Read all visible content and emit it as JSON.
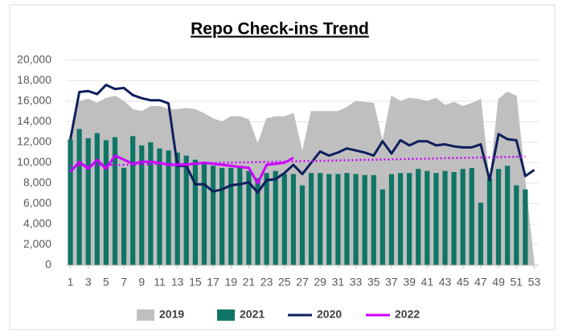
{
  "chart_data": {
    "type": "combo",
    "title": "Repo Check-ins Trend",
    "x": [
      1,
      2,
      3,
      4,
      5,
      6,
      7,
      8,
      9,
      10,
      11,
      12,
      13,
      14,
      15,
      16,
      17,
      18,
      19,
      20,
      21,
      22,
      23,
      24,
      25,
      26,
      27,
      28,
      29,
      30,
      31,
      32,
      33,
      34,
      35,
      36,
      37,
      38,
      39,
      40,
      41,
      42,
      43,
      44,
      45,
      46,
      47,
      48,
      49,
      50,
      51,
      52,
      53
    ],
    "xlim": [
      0.5,
      53.5
    ],
    "xticks": [
      1,
      3,
      5,
      7,
      9,
      11,
      13,
      15,
      17,
      19,
      21,
      23,
      25,
      27,
      29,
      31,
      33,
      35,
      37,
      39,
      41,
      43,
      45,
      47,
      49,
      51,
      53
    ],
    "ylim": [
      0,
      20000
    ],
    "yticks": [
      {
        "value": 0,
        "label": "0"
      },
      {
        "value": 2000,
        "label": "2,000"
      },
      {
        "value": 4000,
        "label": "4,000"
      },
      {
        "value": 6000,
        "label": "6,000"
      },
      {
        "value": 8000,
        "label": "8,000"
      },
      {
        "value": 10000,
        "label": "10,000"
      },
      {
        "value": 12000,
        "label": "12,000"
      },
      {
        "value": 14000,
        "label": "14,000"
      },
      {
        "value": 16000,
        "label": "16,000"
      },
      {
        "value": 18000,
        "label": "18,000"
      },
      {
        "value": 20000,
        "label": "20,000"
      }
    ],
    "series": [
      {
        "name": "2019",
        "kind": "area",
        "color": "#bfbfbf",
        "values": [
          12500,
          16000,
          16200,
          15800,
          16300,
          16500,
          16000,
          15200,
          15000,
          15500,
          15500,
          15200,
          15200,
          15300,
          15200,
          14800,
          14300,
          14000,
          14500,
          14500,
          14200,
          11800,
          14300,
          14500,
          14500,
          14800,
          11000,
          15000,
          15000,
          15000,
          15000,
          15400,
          16000,
          15900,
          15800,
          12000,
          16500,
          16000,
          16300,
          16200,
          16000,
          16300,
          15600,
          15900,
          15500,
          15800,
          16200,
          8000,
          16200,
          16900,
          16500,
          8000,
          0
        ]
      },
      {
        "name": "2021",
        "kind": "bar",
        "color": "#0f7566",
        "values": [
          12300,
          13300,
          12400,
          12900,
          12200,
          12500,
          9500,
          12600,
          11700,
          12000,
          11400,
          11200,
          11000,
          10700,
          10300,
          10000,
          9700,
          9500,
          9500,
          9600,
          9200,
          8500,
          9000,
          9200,
          8900,
          8900,
          7800,
          9000,
          9000,
          8900,
          8900,
          9000,
          8900,
          8800,
          8800,
          7400,
          8900,
          9000,
          9000,
          9400,
          9200,
          9000,
          9200,
          9100,
          9400,
          9500,
          6100,
          8500,
          9400,
          9700,
          7800,
          7400,
          null
        ]
      },
      {
        "name": "2020",
        "kind": "line",
        "color": "#0d1f5c",
        "values": [
          12300,
          16900,
          17000,
          16700,
          17600,
          17200,
          17300,
          16600,
          16300,
          16100,
          16100,
          15800,
          9700,
          9700,
          7900,
          7900,
          7200,
          7400,
          7800,
          7900,
          8100,
          7100,
          8300,
          8400,
          9000,
          9800,
          8900,
          10000,
          11100,
          10700,
          11000,
          11400,
          11200,
          11000,
          10700,
          12100,
          10900,
          12200,
          11700,
          12100,
          12100,
          11700,
          11800,
          11600,
          11500,
          11500,
          11800,
          8300,
          12800,
          12300,
          12200,
          8700,
          9300
        ]
      },
      {
        "name": "2022",
        "kind": "line",
        "color": "#cc00ff",
        "values": [
          9100,
          10100,
          9400,
          10300,
          9400,
          10700,
          10300,
          9900,
          10100,
          10100,
          10000,
          9800,
          9800,
          9800,
          9900,
          10000,
          9900,
          9800,
          9700,
          9600,
          9500,
          8000,
          9800,
          9900,
          10000,
          10500,
          null,
          null,
          null,
          null,
          null,
          null,
          null,
          null,
          null,
          null,
          null,
          null,
          null,
          null,
          null,
          null,
          null,
          null,
          null,
          null,
          null,
          null,
          null,
          null,
          null,
          null,
          null
        ],
        "trendline": {
          "x": [
            1,
            52
          ],
          "values": [
            9700,
            10600
          ]
        }
      }
    ]
  }
}
